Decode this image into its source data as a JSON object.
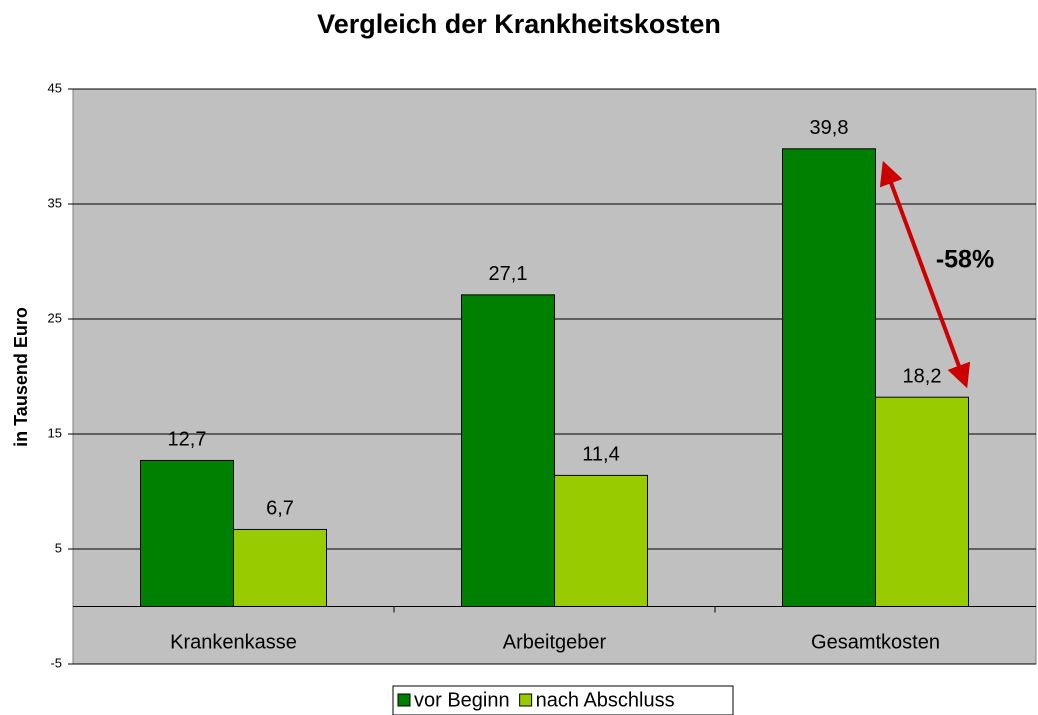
{
  "chart_data": {
    "type": "bar",
    "title": "Vergleich der Krankheitskosten",
    "y_label": "in Tausend Euro",
    "annotation": "-58%",
    "categories": [
      "Krankenkasse",
      "Arbeitgeber",
      "Gesamtkosten"
    ],
    "series": [
      {
        "name": "vor Beginn",
        "color": "#008000",
        "values": [
          12.7,
          27.1,
          39.8
        ],
        "value_labels": [
          "12,7",
          "27,1",
          "39,8"
        ]
      },
      {
        "name": "nach Abschluss",
        "color": "#99cc00",
        "values": [
          6.7,
          11.4,
          18.2
        ],
        "value_labels": [
          "6,7",
          "11,4",
          "18,2"
        ]
      }
    ],
    "ylim": [
      -5,
      45
    ],
    "yticks": [
      -5,
      5,
      15,
      25,
      35,
      45
    ],
    "grid": true
  }
}
